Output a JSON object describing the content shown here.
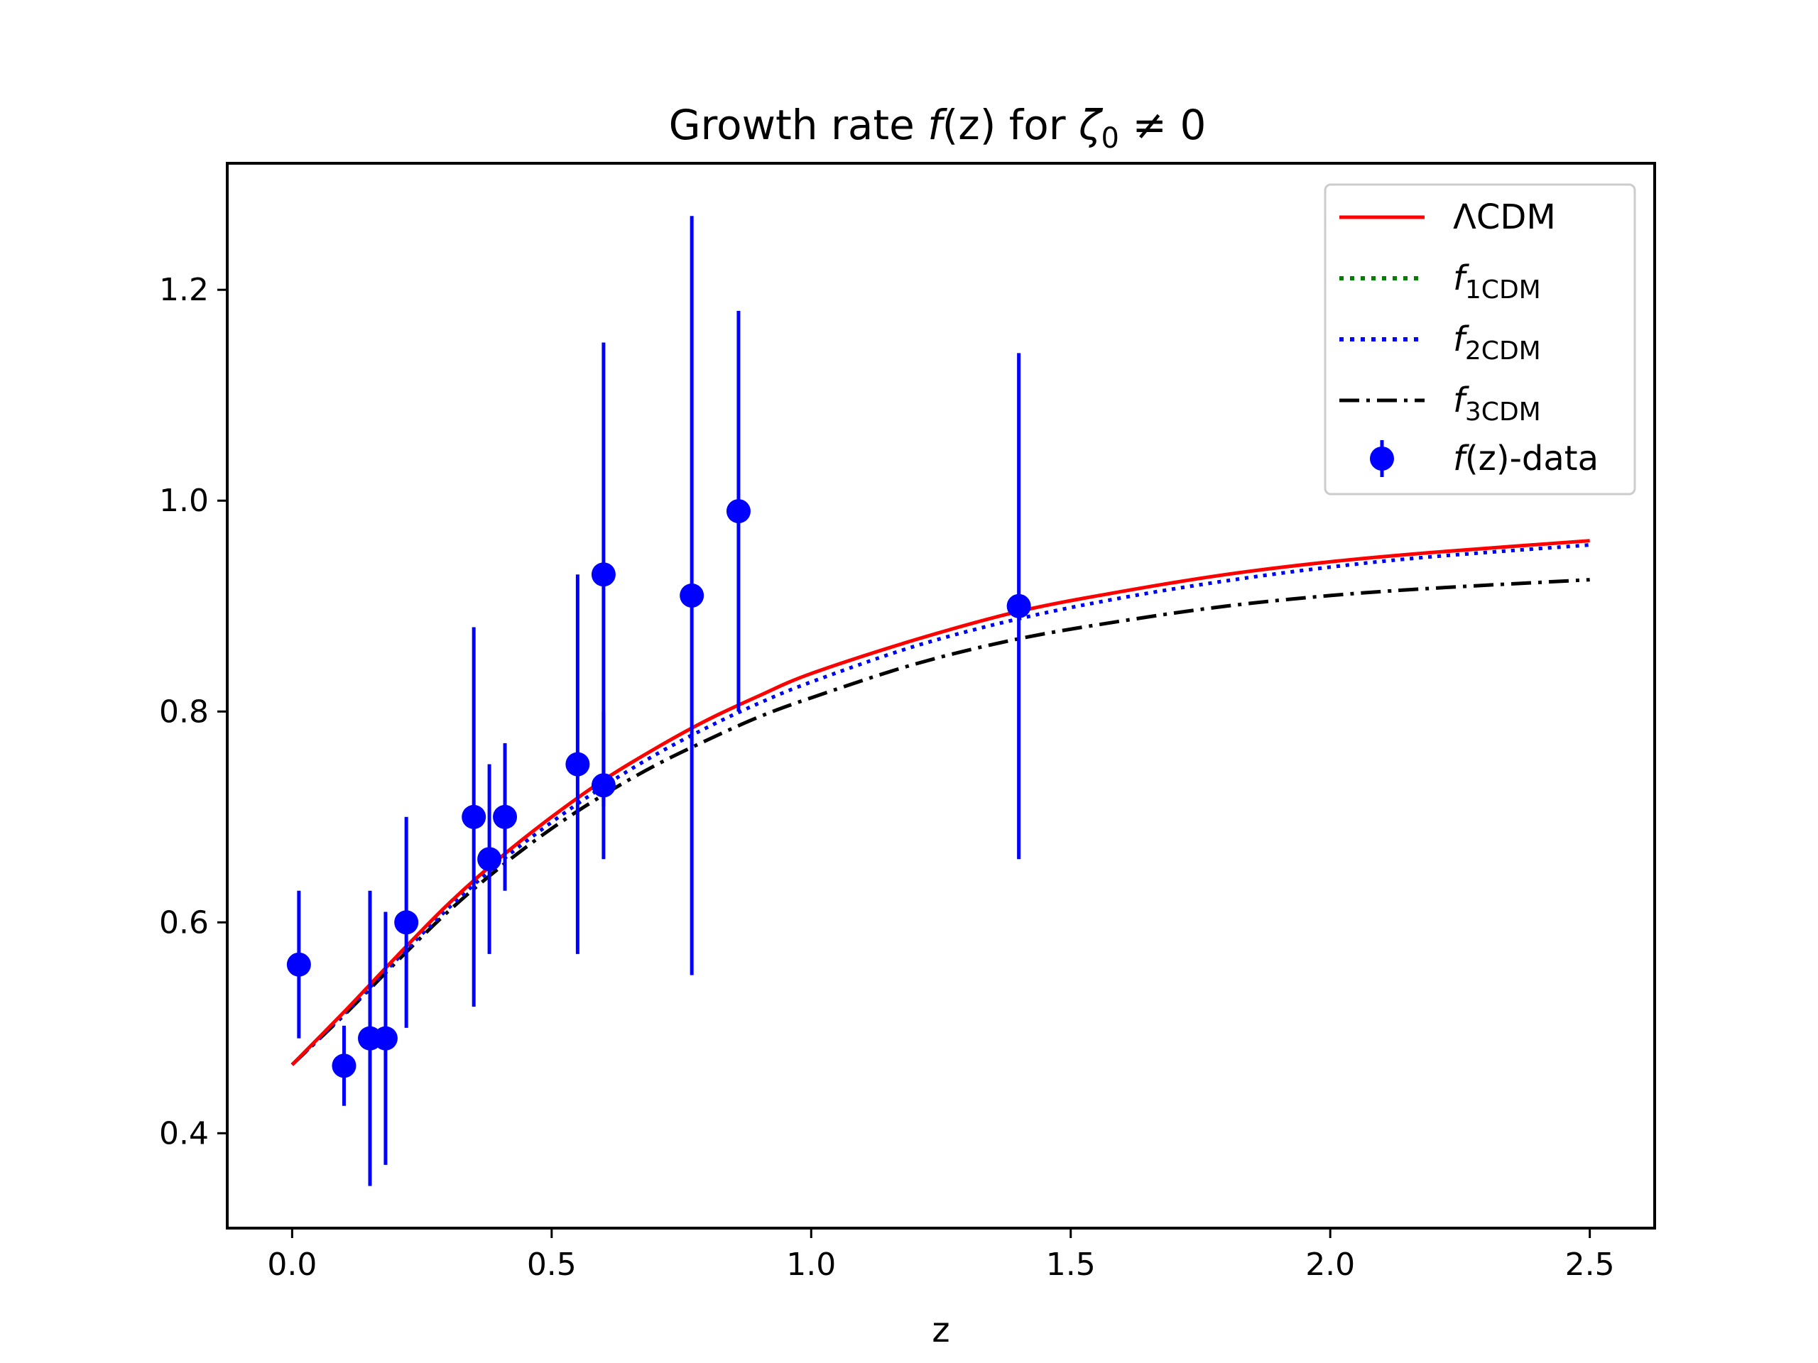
{
  "chart_data": {
    "type": "line",
    "title_parts": {
      "prefix": "Growth rate ",
      "f": "f",
      "arg": "(z)",
      "mid": " for ",
      "zeta": "ζ",
      "zeta_sub": "0",
      "suffix": " ≠ 0"
    },
    "xlabel": "z",
    "ylabel": "",
    "xlim": [
      -0.125,
      2.625
    ],
    "ylim": [
      0.31,
      1.32
    ],
    "xticks": [
      0.0,
      0.5,
      1.0,
      1.5,
      2.0,
      2.5
    ],
    "xtick_labels": [
      "0.0",
      "0.5",
      "1.0",
      "1.5",
      "2.0",
      "2.5"
    ],
    "yticks": [
      0.4,
      0.6,
      0.8,
      1.0,
      1.2
    ],
    "ytick_labels": [
      "0.4",
      "0.6",
      "0.8",
      "1.0",
      "1.2"
    ],
    "legend_position": "top-right",
    "colors": {
      "lcdm": "#ff0000",
      "f1": "#008000",
      "f2": "#0000ff",
      "f3": "#000000",
      "data": "#0000ff"
    },
    "legend": [
      {
        "key": "lcdm",
        "label": "ΛCDM",
        "style": "solid"
      },
      {
        "key": "f1",
        "label": "f",
        "sub": "1CDM",
        "style": "dotted"
      },
      {
        "key": "f2",
        "label": "f",
        "sub": "2CDM",
        "style": "dotted"
      },
      {
        "key": "f3",
        "label": "f",
        "sub": "3CDM",
        "style": "dashdot"
      },
      {
        "key": "data",
        "label": "f",
        "arg": "(z)",
        "tail": "-data",
        "style": "errorbar"
      }
    ],
    "series": [
      {
        "key": "lcdm",
        "name": "ΛCDM",
        "x": [
          0.0,
          0.1,
          0.2,
          0.3,
          0.4,
          0.5,
          0.6,
          0.7,
          0.8,
          0.9,
          1.0,
          1.2,
          1.4,
          1.6,
          1.8,
          2.0,
          2.2,
          2.5
        ],
        "y": [
          0.465,
          0.515,
          0.567,
          0.617,
          0.661,
          0.7,
          0.735,
          0.765,
          0.792,
          0.815,
          0.836,
          0.868,
          0.895,
          0.914,
          0.93,
          0.942,
          0.951,
          0.962
        ]
      },
      {
        "key": "f1",
        "name": "f1CDM",
        "x": [
          0.0,
          0.1,
          0.2,
          0.3,
          0.4,
          0.5,
          0.6,
          0.7,
          0.8,
          0.9,
          1.0,
          1.2,
          1.4,
          1.6,
          1.8,
          2.0,
          2.2,
          2.5
        ],
        "y": [
          0.465,
          0.513,
          0.564,
          0.613,
          0.657,
          0.695,
          0.729,
          0.759,
          0.785,
          0.808,
          0.828,
          0.862,
          0.888,
          0.908,
          0.924,
          0.937,
          0.947,
          0.958
        ]
      },
      {
        "key": "f2",
        "name": "f2CDM",
        "x": [
          0.0,
          0.1,
          0.2,
          0.3,
          0.4,
          0.5,
          0.6,
          0.7,
          0.8,
          0.9,
          1.0,
          1.2,
          1.4,
          1.6,
          1.8,
          2.0,
          2.2,
          2.5
        ],
        "y": [
          0.465,
          0.513,
          0.564,
          0.613,
          0.657,
          0.695,
          0.729,
          0.759,
          0.785,
          0.808,
          0.828,
          0.862,
          0.888,
          0.908,
          0.924,
          0.937,
          0.947,
          0.958
        ]
      },
      {
        "key": "f3",
        "name": "f3CDM",
        "x": [
          0.0,
          0.1,
          0.2,
          0.3,
          0.4,
          0.5,
          0.6,
          0.7,
          0.8,
          0.9,
          1.0,
          1.2,
          1.4,
          1.6,
          1.8,
          2.0,
          2.2,
          2.5
        ],
        "y": [
          0.465,
          0.512,
          0.562,
          0.61,
          0.652,
          0.689,
          0.721,
          0.749,
          0.773,
          0.795,
          0.813,
          0.845,
          0.869,
          0.886,
          0.9,
          0.91,
          0.917,
          0.925
        ]
      }
    ],
    "data_points": {
      "name": "f(z)-data",
      "x": [
        0.013,
        0.1,
        0.15,
        0.18,
        0.22,
        0.35,
        0.38,
        0.41,
        0.55,
        0.6,
        0.6,
        0.77,
        0.86,
        1.4
      ],
      "y": [
        0.56,
        0.464,
        0.49,
        0.49,
        0.6,
        0.7,
        0.66,
        0.7,
        0.75,
        0.93,
        0.73,
        0.91,
        0.99,
        0.9
      ],
      "err": [
        0.07,
        0.038,
        0.14,
        0.12,
        0.1,
        0.18,
        0.09,
        0.07,
        0.18,
        0.22,
        0.07,
        0.36,
        0.19,
        0.24
      ]
    }
  }
}
